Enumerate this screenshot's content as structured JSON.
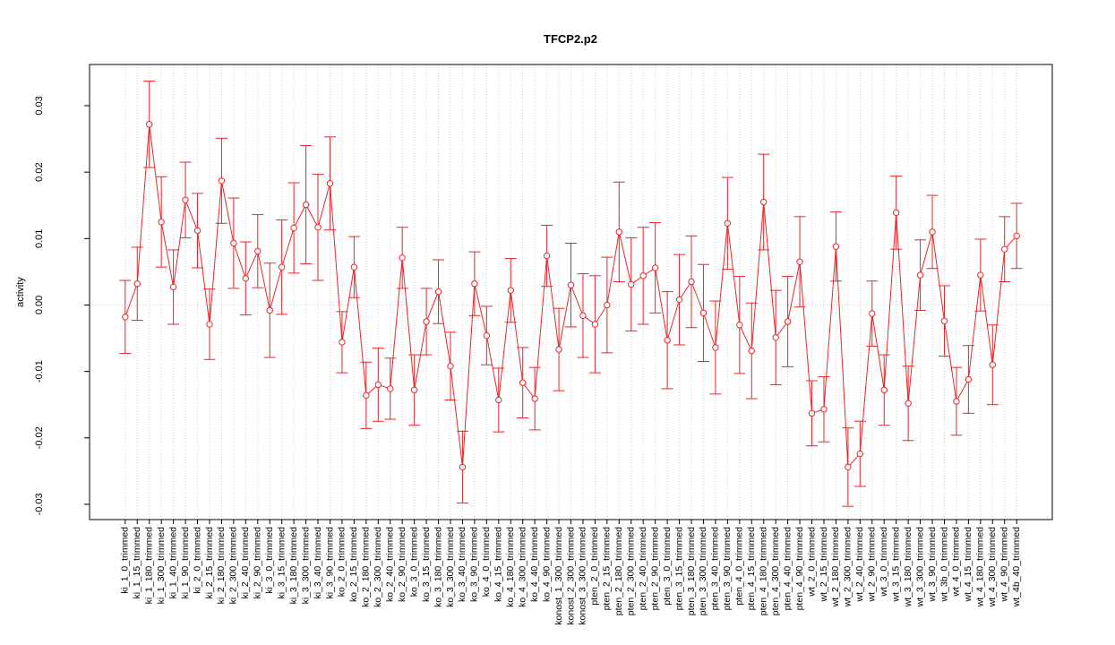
{
  "chart_data": {
    "type": "errorbar-line",
    "title": "TFCP2.p2",
    "y_label": "activity",
    "categories": [
      "ki_1_0_trimmed",
      "ki_1_15_trimmed",
      "ki_1_180_trimmed",
      "ki_1_300_trimmed",
      "ki_1_40_trimmed",
      "ki_1_90_trimmed",
      "ki_2_0_trimmed",
      "ki_2_15_trimmed",
      "ki_2_180_trimmed",
      "ki_2_300_trimmed",
      "ki_2_40_trimmed",
      "ki_2_90_trimmed",
      "ki_3_0_trimmed",
      "ki_3_15_trimmed",
      "ki_3_180_trimmed",
      "ki_3_300_trimmed",
      "ki_3_40_trimmed",
      "ki_3_90_trimmed",
      "ko_2_0_trimmed",
      "ko_2_15_trimmed",
      "ko_2_180_trimmed",
      "ko_2_300_trimmed",
      "ko_2_40_trimmed",
      "ko_2_90_trimmed",
      "ko_3_0_trimmed",
      "ko_3_15_trimmed",
      "ko_3_180_trimmed",
      "ko_3_300_trimmed",
      "ko_3_40_trimmed",
      "ko_3_90_trimmed",
      "ko_4_0_trimmed",
      "ko_4_15_trimmed",
      "ko_4_180_trimmed",
      "ko_4_300_trimmed",
      "ko_4_40_trimmed",
      "ko_4_90_trimmed",
      "konost_1_300_trimmed",
      "konost_2_300_trimmed",
      "konost_3_300_trimmed",
      "pten_2_0_trimmed",
      "pten_2_15_trimmed",
      "pten_2_180_trimmed",
      "pten_2_300_trimmed",
      "pten_2_40_trimmed",
      "pten_2_90_trimmed",
      "pten_3_0_trimmed",
      "pten_3_15_trimmed",
      "pten_3_180_trimmed",
      "pten_3_300_trimmed",
      "pten_3_40_trimmed",
      "pten_3_90_trimmed",
      "pten_4_0_trimmed",
      "pten_4_15_trimmed",
      "pten_4_180_trimmed",
      "pten_4_300_trimmed",
      "pten_4_40_trimmed",
      "pten_4_90_trimmed",
      "wt_2_0_trimmed",
      "wt_2_15_trimmed",
      "wt_2_180_trimmed",
      "wt_2_300_trimmed",
      "wt_2_40_trimmed",
      "wt_2_90_trimmed",
      "wt_3_0_trimmed",
      "wt_3_15_trimmed",
      "wt_3_180_trimmed",
      "wt_3_300_trimmed",
      "wt_3_90_trimmed",
      "wt_3b_0_trimmed",
      "wt_4_0_trimmed",
      "wt_4_15_trimmed",
      "wt_4_180_trimmed",
      "wt_4_300_trimmed",
      "wt_4_90_trimmed",
      "wt_4b_40_trimmed"
    ],
    "series": [
      {
        "color": "#e8262a",
        "values": [
          -0.0018,
          0.0032,
          0.0272,
          0.0125,
          0.0027,
          0.0158,
          0.0112,
          -0.0029,
          0.0187,
          0.0093,
          0.004,
          0.0081,
          -0.0008,
          0.0057,
          0.0116,
          0.0151,
          0.0117,
          0.0183,
          -0.0056,
          0.0057,
          -0.0136,
          -0.012,
          -0.0126,
          0.0071,
          -0.0128,
          -0.0025,
          0.002,
          -0.0092,
          -0.0244,
          0.0032,
          -0.0046,
          -0.0143,
          0.0022,
          -0.0117,
          -0.0141,
          0.0074,
          -0.0067,
          0.003,
          -0.0016,
          -0.0029,
          0.0,
          0.011,
          0.0031,
          0.0044,
          0.0056,
          -0.0053,
          0.0008,
          0.0035,
          -0.0012,
          -0.0064,
          0.0123,
          -0.003,
          -0.0069,
          0.0155,
          -0.0049,
          -0.0025,
          0.0065,
          -0.0163,
          -0.0157,
          0.0088,
          -0.0244,
          -0.0224,
          -0.0013,
          -0.0128,
          0.0139,
          -0.0148,
          0.0045,
          0.011,
          -0.0024,
          -0.0145,
          -0.0112,
          0.0045,
          -0.009,
          0.0084,
          0.0104
        ],
        "errors": [
          0.0055,
          0.0055,
          0.0065,
          0.0068,
          0.0056,
          0.0057,
          0.0056,
          0.0053,
          0.0064,
          0.0068,
          0.0055,
          0.0055,
          0.0071,
          0.0071,
          0.0068,
          0.0089,
          0.008,
          0.007,
          0.0046,
          0.0046,
          0.005,
          0.0055,
          0.0046,
          0.0046,
          0.0053,
          0.005,
          0.0048,
          0.0051,
          0.0054,
          0.0048,
          0.0044,
          0.0048,
          0.0048,
          0.0053,
          0.0047,
          0.0046,
          0.0062,
          0.0063,
          0.0063,
          0.0073,
          0.0072,
          0.0075,
          0.007,
          0.0073,
          0.0068,
          0.0073,
          0.0068,
          0.0069,
          0.0073,
          0.007,
          0.0069,
          0.0073,
          0.0072,
          0.0072,
          0.0071,
          0.0068,
          0.0068,
          0.0049,
          0.0049,
          0.0052,
          0.0059,
          0.0049,
          0.0049,
          0.0053,
          0.0055,
          0.0056,
          0.0053,
          0.0055,
          0.0053,
          0.0051,
          0.0051,
          0.0054,
          0.006,
          0.0049,
          0.0049
        ]
      }
    ],
    "ylim": [
      -0.0323,
      0.0362
    ],
    "yticks": [
      {
        "value": -0.03,
        "label": "-0.03"
      },
      {
        "value": -0.02,
        "label": "-0.02"
      },
      {
        "value": -0.01,
        "label": "-0.01"
      },
      {
        "value": 0,
        "label": "0.00"
      },
      {
        "value": 0.01,
        "label": "0.01"
      },
      {
        "value": 0.02,
        "label": "0.02"
      },
      {
        "value": 0.03,
        "label": "0.03"
      }
    ],
    "hline": 0,
    "grid": true
  }
}
